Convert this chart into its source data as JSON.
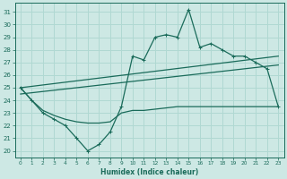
{
  "xlabel": "Humidex (Indice chaleur)",
  "background_color": "#cde8e4",
  "grid_color": "#b0d8d2",
  "line_color": "#1a6b5a",
  "xlim": [
    -0.5,
    23.5
  ],
  "ylim": [
    19.5,
    31.7
  ],
  "yticks": [
    20,
    21,
    22,
    23,
    24,
    25,
    26,
    27,
    28,
    29,
    30,
    31
  ],
  "xticks": [
    0,
    1,
    2,
    3,
    4,
    5,
    6,
    7,
    8,
    9,
    10,
    11,
    12,
    13,
    14,
    15,
    16,
    17,
    18,
    19,
    20,
    21,
    22,
    23
  ],
  "line1_x": [
    0,
    1,
    2,
    3,
    4,
    5,
    6,
    7,
    8,
    9,
    10,
    11,
    12,
    13,
    14,
    15,
    16,
    17,
    18,
    19,
    20,
    21,
    22,
    23
  ],
  "line1_y": [
    25.0,
    24.0,
    23.0,
    22.5,
    22.0,
    21.0,
    20.0,
    20.5,
    21.5,
    23.5,
    27.5,
    27.2,
    29.0,
    29.2,
    29.0,
    31.2,
    28.2,
    28.5,
    28.0,
    27.5,
    27.5,
    27.0,
    26.5,
    23.5
  ],
  "line2_x": [
    0,
    23
  ],
  "line2_y": [
    25.0,
    27.5
  ],
  "line3_x": [
    0,
    23
  ],
  "line3_y": [
    24.5,
    26.8
  ],
  "line4_x": [
    0,
    1,
    2,
    3,
    4,
    5,
    6,
    7,
    8,
    9,
    10,
    11,
    12,
    13,
    14,
    15,
    16,
    17,
    18,
    19,
    20,
    21,
    22,
    23
  ],
  "line4_y": [
    25.0,
    24.0,
    23.2,
    22.8,
    22.5,
    22.3,
    22.2,
    22.2,
    22.3,
    23.0,
    23.2,
    23.2,
    23.3,
    23.4,
    23.5,
    23.5,
    23.5,
    23.5,
    23.5,
    23.5,
    23.5,
    23.5,
    23.5,
    23.5
  ]
}
